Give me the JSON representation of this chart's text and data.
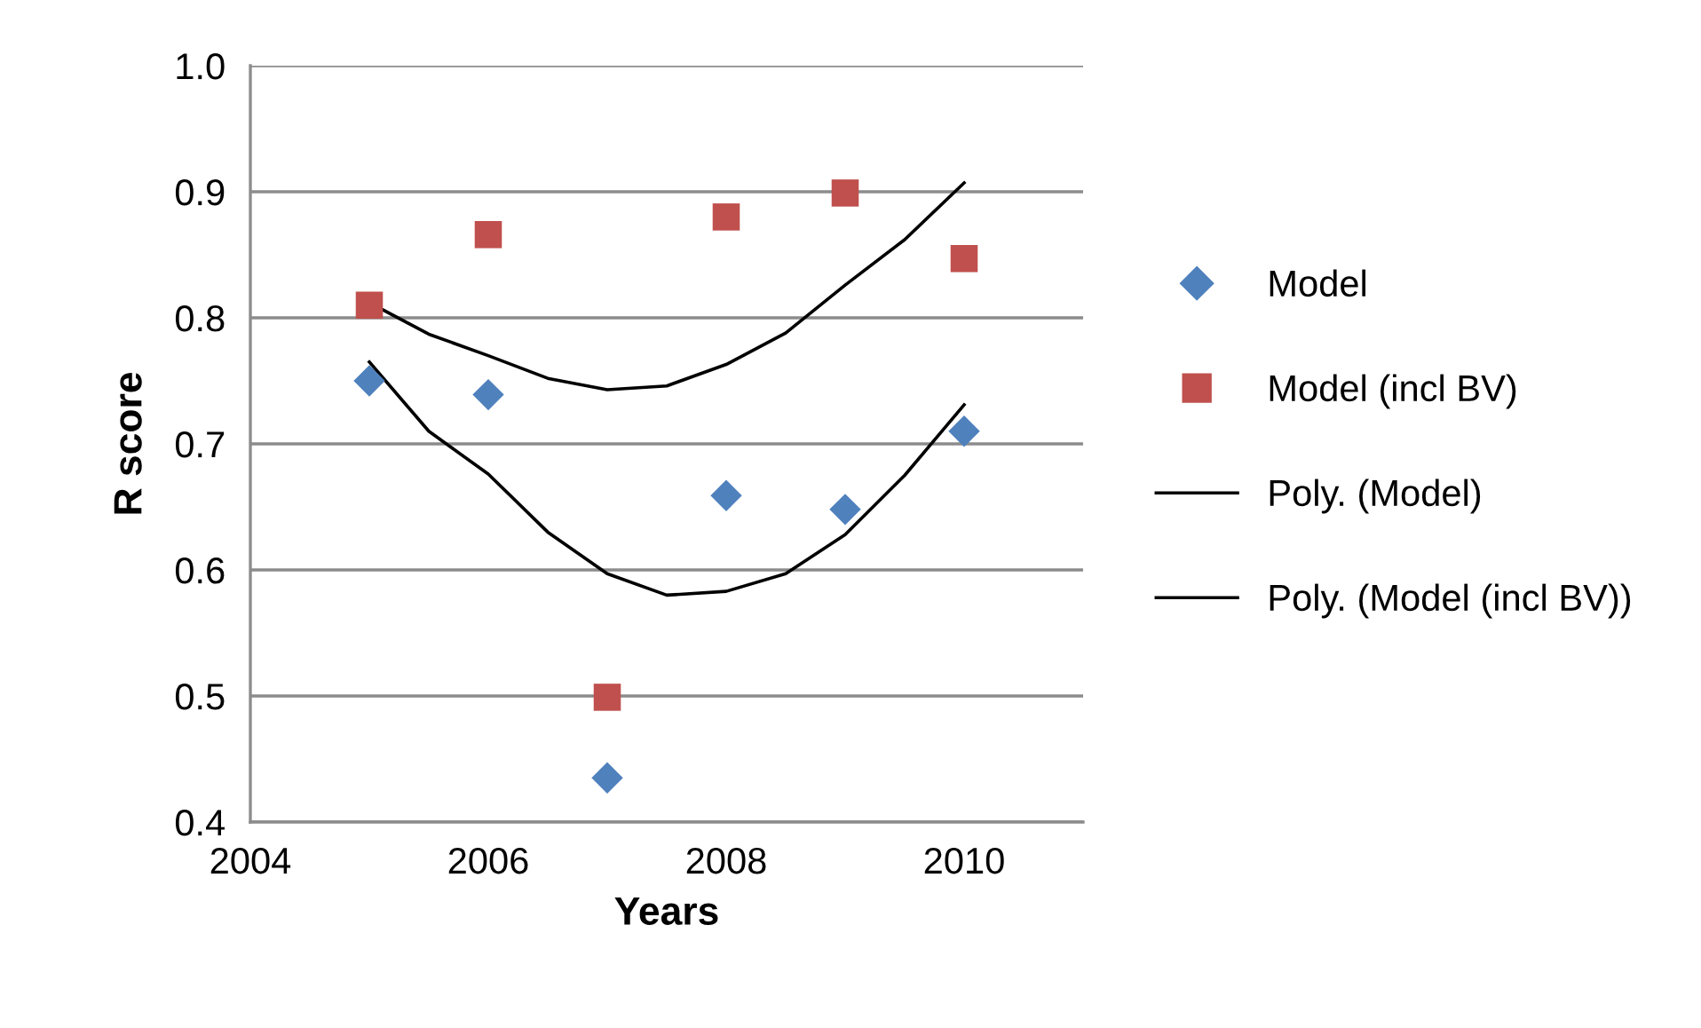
{
  "chart_data": {
    "type": "scatter",
    "xlabel": "Years",
    "ylabel": "R score",
    "xlim": [
      2004,
      2011
    ],
    "xticks": [
      2004,
      2006,
      2008,
      2010
    ],
    "ylim": [
      0.4,
      1.0
    ],
    "yticks": [
      {
        "value": 0.4,
        "label": "0.4"
      },
      {
        "value": 0.5,
        "label": "0.5"
      },
      {
        "value": 0.6,
        "label": "0.6"
      },
      {
        "value": 0.7,
        "label": "0.7"
      },
      {
        "value": 0.8,
        "label": "0.8"
      },
      {
        "value": 0.9,
        "label": "0.9"
      },
      {
        "value": 1.0,
        "label": "1.0"
      }
    ],
    "grid": "y",
    "legend": "right",
    "x": [
      2005,
      2006,
      2007,
      2008,
      2009,
      2010
    ],
    "series": [
      {
        "name": "Model",
        "marker": "diamond",
        "color": "#4f81bd",
        "values": [
          0.75,
          0.739,
          0.435,
          0.659,
          0.648,
          0.71
        ]
      },
      {
        "name": "Model (incl BV)",
        "marker": "square",
        "color": "#c0504d",
        "values": [
          0.81,
          0.866,
          0.499,
          0.88,
          0.899,
          0.847
        ]
      },
      {
        "name": "Poly. (Model)",
        "type": "line",
        "marker": "none",
        "color": "#000000",
        "x": [
          2005,
          2005.5,
          2006,
          2006.5,
          2007,
          2007.5,
          2008,
          2008.5,
          2009,
          2009.5,
          2010
        ],
        "values": [
          0.765,
          0.71,
          0.676,
          0.63,
          0.597,
          0.58,
          0.583,
          0.597,
          0.628,
          0.675,
          0.731
        ]
      },
      {
        "name": "Poly. (Model (incl BV))",
        "type": "line",
        "marker": "none",
        "color": "#000000",
        "x": [
          2005,
          2005.5,
          2006,
          2006.5,
          2007,
          2007.5,
          2008,
          2008.5,
          2009,
          2009.5,
          2010
        ],
        "values": [
          0.812,
          0.787,
          0.77,
          0.752,
          0.743,
          0.746,
          0.763,
          0.788,
          0.826,
          0.862,
          0.907
        ]
      }
    ]
  }
}
